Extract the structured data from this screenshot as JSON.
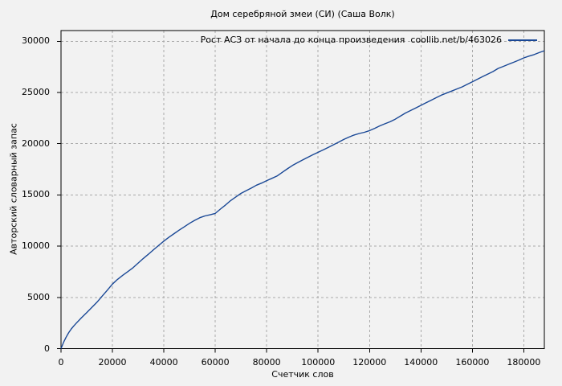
{
  "window": {
    "background": "#f2f2f2"
  },
  "chart_data": {
    "type": "line",
    "title": "Дом серебряной змеи (СИ) (Саша Волк)",
    "xlabel": "Счетчик слов",
    "ylabel": "Авторский словарный запас",
    "x_ticks": [
      0,
      20000,
      40000,
      60000,
      80000,
      100000,
      120000,
      140000,
      160000,
      180000
    ],
    "y_ticks": [
      0,
      5000,
      10000,
      15000,
      20000,
      25000,
      30000
    ],
    "xlim": [
      0,
      188000
    ],
    "ylim": [
      0,
      31050
    ],
    "grid": true,
    "legend_position": "top-right-inside",
    "colors": {
      "line": "#1a4896",
      "grid": "#a9a9a9",
      "frame": "#000000",
      "text": "#000000",
      "background": "#f2f2f2"
    },
    "series": [
      {
        "name": "Рост АСЗ от начала до конца произведения  coollib.net/b/463026",
        "points": [
          [
            0,
            0
          ],
          [
            1000,
            620
          ],
          [
            2000,
            1120
          ],
          [
            3000,
            1560
          ],
          [
            4000,
            1920
          ],
          [
            5000,
            2220
          ],
          [
            6000,
            2500
          ],
          [
            8000,
            3020
          ],
          [
            10000,
            3520
          ],
          [
            12000,
            4020
          ],
          [
            14000,
            4530
          ],
          [
            16000,
            5120
          ],
          [
            18000,
            5700
          ],
          [
            20000,
            6300
          ],
          [
            22000,
            6760
          ],
          [
            24000,
            7160
          ],
          [
            26000,
            7520
          ],
          [
            28000,
            7900
          ],
          [
            30000,
            8350
          ],
          [
            32000,
            8800
          ],
          [
            34000,
            9220
          ],
          [
            36000,
            9660
          ],
          [
            38000,
            10080
          ],
          [
            40000,
            10500
          ],
          [
            42000,
            10880
          ],
          [
            44000,
            11230
          ],
          [
            46000,
            11570
          ],
          [
            48000,
            11900
          ],
          [
            50000,
            12230
          ],
          [
            52000,
            12520
          ],
          [
            54000,
            12780
          ],
          [
            56000,
            12950
          ],
          [
            58000,
            13060
          ],
          [
            60000,
            13200
          ],
          [
            62000,
            13620
          ],
          [
            64000,
            14020
          ],
          [
            66000,
            14450
          ],
          [
            68000,
            14810
          ],
          [
            70000,
            15150
          ],
          [
            72000,
            15420
          ],
          [
            74000,
            15670
          ],
          [
            76000,
            15950
          ],
          [
            78000,
            16160
          ],
          [
            80000,
            16400
          ],
          [
            82000,
            16620
          ],
          [
            84000,
            16850
          ],
          [
            86000,
            17200
          ],
          [
            88000,
            17550
          ],
          [
            90000,
            17880
          ],
          [
            92000,
            18150
          ],
          [
            94000,
            18420
          ],
          [
            96000,
            18680
          ],
          [
            98000,
            18930
          ],
          [
            100000,
            19160
          ],
          [
            102000,
            19400
          ],
          [
            104000,
            19650
          ],
          [
            106000,
            19900
          ],
          [
            108000,
            20150
          ],
          [
            110000,
            20420
          ],
          [
            112000,
            20650
          ],
          [
            114000,
            20850
          ],
          [
            116000,
            21000
          ],
          [
            118000,
            21120
          ],
          [
            120000,
            21280
          ],
          [
            122000,
            21500
          ],
          [
            124000,
            21750
          ],
          [
            126000,
            21950
          ],
          [
            128000,
            22150
          ],
          [
            130000,
            22400
          ],
          [
            132000,
            22700
          ],
          [
            134000,
            23000
          ],
          [
            136000,
            23250
          ],
          [
            138000,
            23500
          ],
          [
            140000,
            23750
          ],
          [
            142000,
            24000
          ],
          [
            144000,
            24250
          ],
          [
            146000,
            24500
          ],
          [
            148000,
            24750
          ],
          [
            150000,
            24950
          ],
          [
            152000,
            25150
          ],
          [
            154000,
            25350
          ],
          [
            156000,
            25550
          ],
          [
            158000,
            25800
          ],
          [
            160000,
            26050
          ],
          [
            162000,
            26300
          ],
          [
            164000,
            26550
          ],
          [
            166000,
            26800
          ],
          [
            168000,
            27050
          ],
          [
            170000,
            27350
          ],
          [
            172000,
            27550
          ],
          [
            174000,
            27750
          ],
          [
            176000,
            27950
          ],
          [
            178000,
            28150
          ],
          [
            180000,
            28380
          ],
          [
            182000,
            28550
          ],
          [
            184000,
            28700
          ],
          [
            186000,
            28900
          ],
          [
            188000,
            29080
          ]
        ]
      }
    ]
  }
}
